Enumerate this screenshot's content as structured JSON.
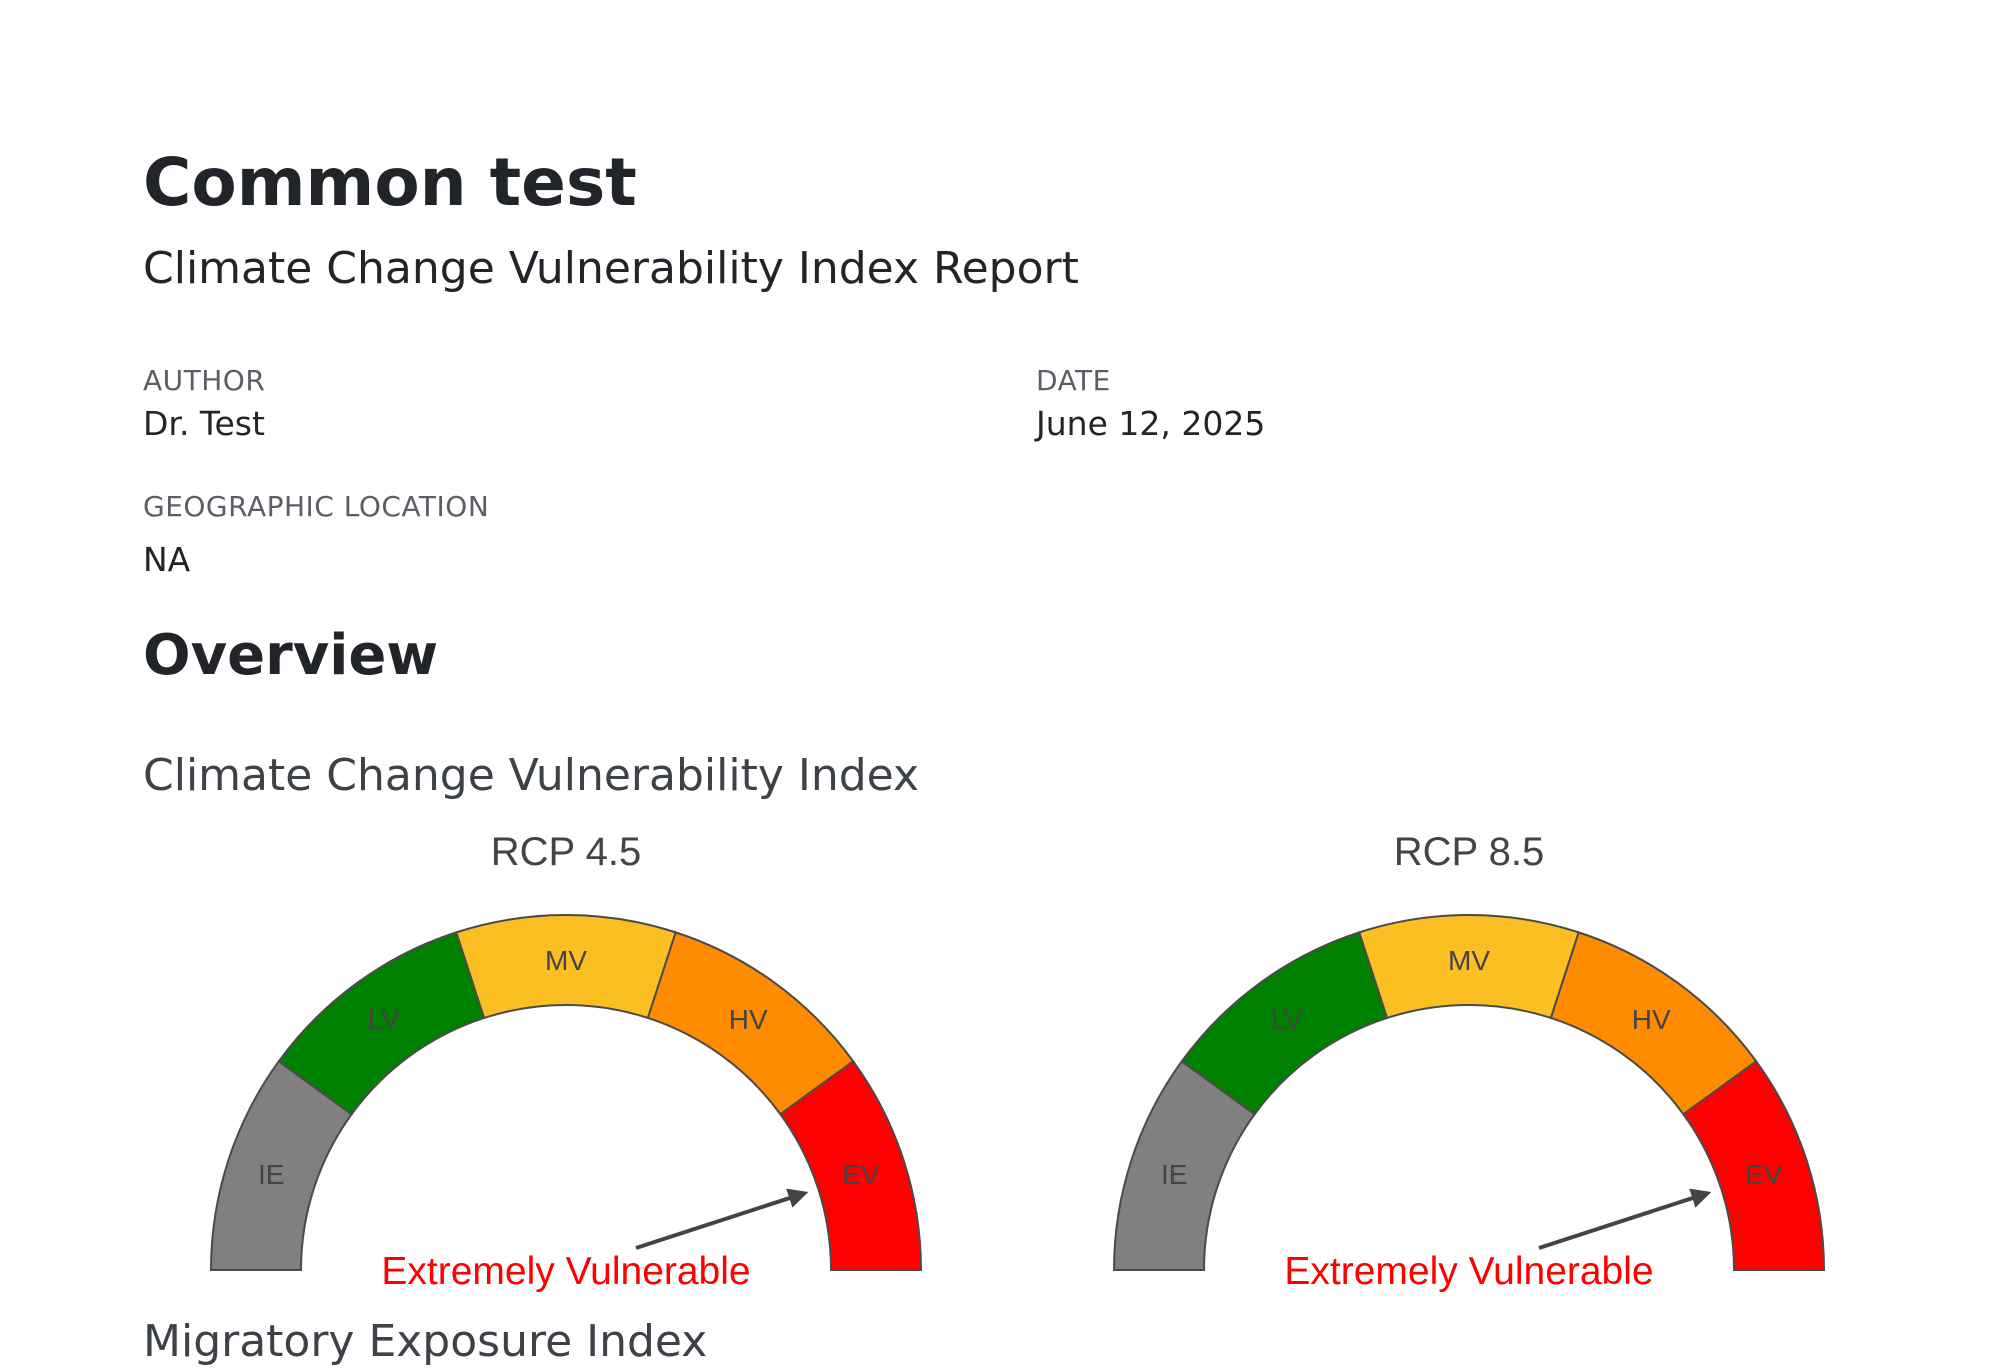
{
  "document": {
    "title": "Common test",
    "subtitle": "Climate Change Vulnerability Index Report"
  },
  "meta": {
    "author_label": "AUTHOR",
    "author_value": "Dr. Test",
    "date_label": "DATE",
    "date_value": "June 12, 2025",
    "location_label": "GEOGRAPHIC LOCATION",
    "location_value": "NA"
  },
  "overview": {
    "heading": "Overview",
    "ccvi_heading": "Climate Change Vulnerability Index",
    "migratory_heading": "Migratory Exposure Index"
  },
  "gauges": [
    {
      "title": "RCP 4.5",
      "result": "Extremely Vulnerable",
      "result_color": "#ff0000",
      "selected_segment": "EV",
      "segments": [
        {
          "label": "IE",
          "color": "#808080"
        },
        {
          "label": "LV",
          "color": "#008000"
        },
        {
          "label": "MV",
          "color": "#fbbf24"
        },
        {
          "label": "HV",
          "color": "#ff8c00"
        },
        {
          "label": "EV",
          "color": "#ff0000"
        }
      ]
    },
    {
      "title": "RCP 8.5",
      "result": "Extremely Vulnerable",
      "result_color": "#ff0000",
      "selected_segment": "EV",
      "segments": [
        {
          "label": "IE",
          "color": "#808080"
        },
        {
          "label": "LV",
          "color": "#008000"
        },
        {
          "label": "MV",
          "color": "#fbbf24"
        },
        {
          "label": "HV",
          "color": "#ff8c00"
        },
        {
          "label": "EV",
          "color": "#ff0000"
        }
      ]
    }
  ]
}
